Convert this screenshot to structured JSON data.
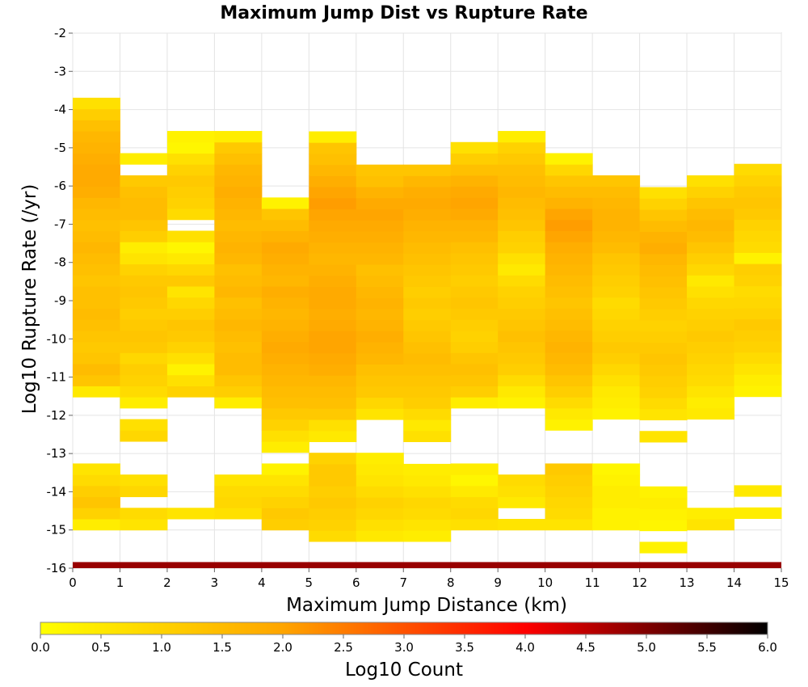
{
  "chart_data": {
    "type": "heatmap",
    "title": "Maximum Jump Dist vs Rupture Rate",
    "xlabel": "Maximum Jump Distance (km)",
    "ylabel": "Log10 Rupture Rate (/yr)",
    "xlim": [
      0,
      15
    ],
    "ylim": [
      -16,
      -2
    ],
    "x_ticks": [
      "0",
      "1",
      "2",
      "3",
      "4",
      "5",
      "6",
      "7",
      "8",
      "9",
      "10",
      "11",
      "12",
      "13",
      "14",
      "15"
    ],
    "y_ticks": [
      "-2",
      "-3",
      "-4",
      "-5",
      "-6",
      "-7",
      "-8",
      "-9",
      "-10",
      "-11",
      "-12",
      "-13",
      "-14",
      "-15",
      "-16"
    ],
    "grid": true,
    "x_bin_width": 1,
    "y_bin_height": 0.29,
    "y_bin_start": -16,
    "value_label": "Log10 Count",
    "colorbar": {
      "label": "Log10 Count",
      "range": [
        0,
        6
      ],
      "ticks": [
        "0.0",
        "0.5",
        "1.0",
        "1.5",
        "2.0",
        "2.5",
        "3.0",
        "3.5",
        "4.0",
        "4.5",
        "5.0",
        "5.5",
        "6.0"
      ],
      "colors": [
        "#ffff00",
        "#ffa500",
        "#ff0000",
        "#000000"
      ]
    },
    "bottom_strip": {
      "x_range": [
        0,
        15
      ],
      "y_range": [
        -16,
        -15.84
      ],
      "value": 4.8
    },
    "columns": [
      {
        "x": 0,
        "y_start": -15.0,
        "values": [
          0.4,
          1.0,
          1.3,
          1.1,
          0.8,
          0.6,
          0,
          0,
          0,
          0,
          0,
          0,
          0.5,
          1.3,
          1.5,
          1.3,
          1.2,
          1.3,
          1.4,
          1.5,
          1.4,
          1.4,
          1.3,
          1.4,
          1.5,
          1.6,
          1.5,
          1.4,
          1.5,
          1.6,
          1.8,
          1.9,
          1.9,
          1.8,
          1.7,
          1.6,
          1.4,
          1.1,
          0.7
        ]
      },
      {
        "x": 1,
        "y_start": -15.0,
        "values": [
          0.6,
          0.8,
          0,
          0.9,
          0.7,
          0,
          0,
          0,
          0.9,
          0.7,
          0,
          0.4,
          0.8,
          1.0,
          1.1,
          0.9,
          1.2,
          1.3,
          1.2,
          1.1,
          1.2,
          1.3,
          1.2,
          1.0,
          0.6,
          0.4,
          1.1,
          1.3,
          1.5,
          1.5,
          1.4,
          1.2,
          0,
          0.4
        ]
      },
      {
        "x": 2,
        "y_start": -15.0,
        "values": [
          0,
          0.6,
          0,
          0,
          0,
          0,
          0,
          0,
          0,
          0,
          0,
          0,
          1.0,
          0.7,
          0.3,
          0.7,
          1.0,
          1.2,
          1.3,
          1.1,
          0.9,
          0.6,
          1.2,
          0.9,
          0.5,
          0.2,
          0.7,
          0,
          0.8,
          1.0,
          1.1,
          1.2,
          1.0,
          0.7,
          0.2,
          0.3
        ]
      },
      {
        "x": 3,
        "y_start": -15.0,
        "values": [
          0,
          0.7,
          0.9,
          0.8,
          0.6,
          0,
          0,
          0,
          0,
          0,
          0,
          0.4,
          1.1,
          1.3,
          1.5,
          1.5,
          1.4,
          1.5,
          1.6,
          1.5,
          1.4,
          1.6,
          1.5,
          1.4,
          1.6,
          1.7,
          1.6,
          1.5,
          1.6,
          1.7,
          1.8,
          1.7,
          1.6,
          1.4,
          1.2,
          0.4
        ]
      },
      {
        "x": 4,
        "y_start": -15.0,
        "values": [
          1.1,
          1.2,
          1.0,
          0.8,
          0.6,
          0.3,
          0,
          0.4,
          0.7,
          1.0,
          1.2,
          1.4,
          1.5,
          1.6,
          1.7,
          1.8,
          1.9,
          1.8,
          1.7,
          1.6,
          1.7,
          1.8,
          1.6,
          1.7,
          1.8,
          1.9,
          1.7,
          1.5,
          1.3,
          0.3
        ]
      },
      {
        "x": 5,
        "y_start": -15.3,
        "values": [
          0.8,
          1.0,
          1.1,
          1.2,
          1.1,
          1.2,
          1.2,
          1.0,
          0,
          0.5,
          0.7,
          1.2,
          1.4,
          1.5,
          1.6,
          1.8,
          1.9,
          2.0,
          2.0,
          1.9,
          1.8,
          1.9,
          1.9,
          1.8,
          1.7,
          1.6,
          1.7,
          1.8,
          1.9,
          2.0,
          2.1,
          2.0,
          1.8,
          1.6,
          1.4,
          1.3,
          0.4
        ]
      },
      {
        "x": 6,
        "y_start": -15.3,
        "values": [
          0.5,
          0.7,
          0.9,
          1.0,
          0.8,
          0.6,
          0.5,
          0.4,
          0,
          0,
          0,
          0.6,
          0.9,
          1.2,
          1.3,
          1.4,
          1.6,
          1.7,
          1.8,
          1.7,
          1.6,
          1.7,
          1.6,
          1.5,
          1.4,
          1.6,
          1.7,
          1.8,
          1.9,
          2.0,
          1.9,
          1.7,
          1.4,
          1.3
        ]
      },
      {
        "x": 7,
        "y_start": -15.3,
        "values": [
          0.4,
          0.6,
          0.8,
          0.9,
          0.7,
          0.5,
          0.4,
          0,
          0,
          0.7,
          0.5,
          0.8,
          1.1,
          1.2,
          1.3,
          1.4,
          1.5,
          1.4,
          1.3,
          1.2,
          1.1,
          1.2,
          1.1,
          1.2,
          1.3,
          1.4,
          1.5,
          1.6,
          1.7,
          1.8,
          1.9,
          1.8,
          1.6,
          1.3
        ]
      },
      {
        "x": 8,
        "y_start": -15.0,
        "values": [
          0.7,
          0.9,
          0.8,
          0.5,
          0.2,
          0.4,
          0,
          0,
          0,
          0,
          0,
          0.4,
          1.1,
          1.3,
          1.4,
          1.3,
          1.1,
          1.0,
          1.1,
          1.2,
          1.3,
          1.2,
          1.1,
          1.2,
          1.3,
          1.4,
          1.6,
          1.7,
          1.9,
          2.0,
          1.9,
          1.7,
          1.4,
          1.1,
          0.7
        ]
      },
      {
        "x": 9,
        "y_start": -15.0,
        "values": [
          0.6,
          0,
          0.5,
          0.7,
          0.8,
          0,
          0,
          0,
          0,
          0,
          0,
          0.3,
          0.5,
          0.8,
          1.1,
          1.2,
          1.3,
          1.4,
          1.3,
          1.2,
          1.1,
          1.0,
          0.8,
          0.5,
          0.7,
          1.0,
          1.1,
          1.3,
          1.4,
          1.5,
          1.6,
          1.5,
          1.4,
          1.2,
          1.0,
          0.4
        ]
      },
      {
        "x": 10,
        "y_start": -15.0,
        "values": [
          0.6,
          0.8,
          0.9,
          1.0,
          1.1,
          1.2,
          0,
          0,
          0,
          0.3,
          0.5,
          0.8,
          1.1,
          1.3,
          1.5,
          1.6,
          1.7,
          1.6,
          1.5,
          1.4,
          1.3,
          1.4,
          1.5,
          1.6,
          1.7,
          1.8,
          2.0,
          2.1,
          2.0,
          1.7,
          1.5,
          1.3,
          0.9,
          0.3
        ]
      },
      {
        "x": 11,
        "y_start": -15.0,
        "values": [
          0.3,
          0.3,
          0.4,
          0.4,
          0.3,
          0.2,
          0,
          0,
          0,
          0,
          0.3,
          0.4,
          0.5,
          0.7,
          0.9,
          1.1,
          1.2,
          1.1,
          1.0,
          0.9,
          0.8,
          1.0,
          1.1,
          1.2,
          1.3,
          1.5,
          1.6,
          1.7,
          1.7,
          1.6,
          1.5,
          1.3
        ]
      },
      {
        "x": 12,
        "y_start": -15.6,
        "values": [
          0.3,
          0,
          0.2,
          0.3,
          0.4,
          0.3,
          0,
          0,
          0,
          0,
          0.6,
          0,
          0.6,
          0.8,
          1.0,
          1.1,
          1.2,
          1.3,
          1.2,
          1.1,
          1.0,
          1.1,
          1.2,
          1.3,
          1.4,
          1.5,
          1.6,
          1.8,
          1.7,
          1.5,
          1.3,
          1.0,
          0.7
        ]
      },
      {
        "x": 13,
        "y_start": -15.0,
        "values": [
          0.6,
          0.4,
          0,
          0,
          0,
          0,
          0,
          0,
          0,
          0,
          0.5,
          0.4,
          0.6,
          0.8,
          0.9,
          1.0,
          1.1,
          1.2,
          1.1,
          1.0,
          0.9,
          0.7,
          0.5,
          0.9,
          1.1,
          1.3,
          1.5,
          1.6,
          1.5,
          1.3,
          1.0,
          0.7
        ]
      },
      {
        "x": 14,
        "y_start": -14.7,
        "values": [
          0.4,
          0,
          0.5,
          0,
          0,
          0,
          0,
          0,
          0,
          0,
          0,
          0.3,
          0.4,
          0.6,
          0.8,
          1.0,
          1.1,
          1.2,
          1.0,
          0.9,
          0.8,
          1.0,
          1.1,
          0.3,
          0.8,
          0.9,
          1.0,
          1.2,
          1.3,
          1.2,
          1.0,
          0.8
        ]
      }
    ]
  }
}
